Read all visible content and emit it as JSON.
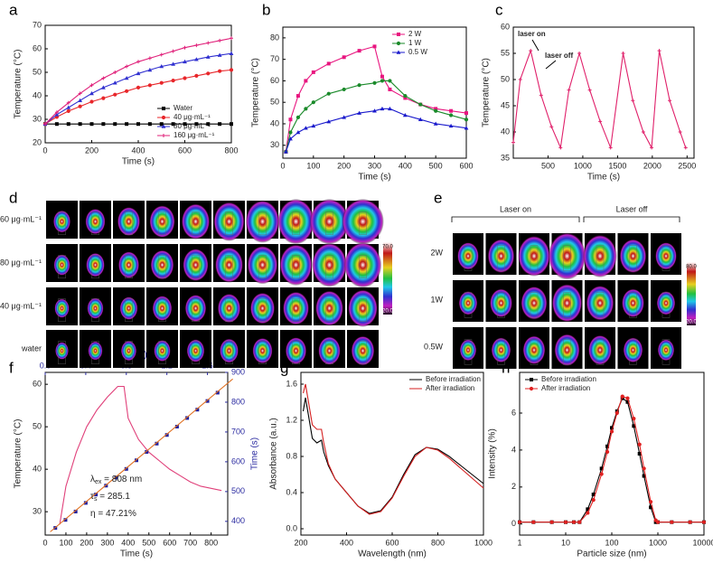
{
  "chart_data": [
    {
      "type": "line",
      "label": "a",
      "xlabel": "Time (s)",
      "ylabel": "Temperature (°C)",
      "xlim": [
        0,
        800
      ],
      "xticks": [
        0,
        200,
        400,
        600,
        800
      ],
      "ylim": [
        20,
        70
      ],
      "yticks": [
        20,
        30,
        40,
        50,
        60,
        70
      ],
      "legend": "lower right",
      "x": [
        0,
        50,
        100,
        150,
        200,
        250,
        300,
        350,
        400,
        450,
        500,
        550,
        600,
        650,
        700,
        750,
        800
      ],
      "series": [
        {
          "name": "Water",
          "color": "#000000",
          "marker": "square",
          "values": [
            28,
            28,
            28,
            28,
            28,
            28,
            28,
            28,
            28,
            28,
            28,
            28,
            28,
            28,
            28,
            28,
            28
          ]
        },
        {
          "name": "40 μg·mL⁻¹",
          "color": "#e8262a",
          "marker": "circle",
          "values": [
            28,
            31,
            33.5,
            35.5,
            37.5,
            39,
            40.5,
            42,
            43.5,
            44.5,
            45.5,
            46.5,
            47.5,
            48.5,
            49.5,
            50.5,
            51
          ]
        },
        {
          "name": "80 μg·mL⁻¹",
          "color": "#3030d0",
          "marker": "triangle",
          "values": [
            28,
            32,
            35,
            38,
            41,
            43.5,
            45.5,
            47.5,
            49.5,
            51,
            52.5,
            53.5,
            54.5,
            55.5,
            56.5,
            57.3,
            58
          ]
        },
        {
          "name": "160 μg·mL⁻¹",
          "color": "#e0207a",
          "marker": "plus",
          "values": [
            28,
            33,
            37,
            41,
            44.5,
            47.5,
            50,
            52.5,
            54.5,
            56,
            57.5,
            59,
            60.5,
            61.5,
            62.5,
            63.5,
            64.5
          ]
        }
      ]
    },
    {
      "type": "line",
      "label": "b",
      "xlabel": "Time (s)",
      "ylabel": "Temperature (°C)",
      "xlim": [
        0,
        600
      ],
      "xticks": [
        0,
        100,
        200,
        300,
        400,
        500,
        600
      ],
      "ylim": [
        24,
        85
      ],
      "yticks": [
        30,
        40,
        50,
        60,
        70,
        80
      ],
      "legend": "upper right",
      "x": [
        10,
        25,
        50,
        75,
        100,
        150,
        200,
        250,
        300,
        325,
        350,
        400,
        450,
        500,
        550,
        600
      ],
      "series": [
        {
          "name": "2 W",
          "color": "#e8157f",
          "marker": "square",
          "values": [
            27,
            42,
            53,
            60,
            64,
            68,
            71,
            74,
            76,
            62,
            56,
            52,
            49,
            47,
            46,
            45
          ]
        },
        {
          "name": "1 W",
          "color": "#1a8a2a",
          "marker": "circle",
          "values": [
            27,
            36,
            43,
            47,
            50,
            54,
            56,
            58,
            59,
            60,
            60,
            53,
            49,
            46,
            44,
            42
          ]
        },
        {
          "name": "0.5 W",
          "color": "#1a1acc",
          "marker": "triangle",
          "values": [
            27,
            33,
            36,
            38,
            39,
            41,
            43,
            45,
            46,
            47,
            47,
            44,
            42,
            40,
            39,
            38
          ]
        }
      ]
    },
    {
      "type": "line",
      "label": "c",
      "xlabel": "Time (s)",
      "ylabel": "Temperature (°C)",
      "xlim": [
        0,
        2600
      ],
      "xticks": [
        500,
        1000,
        1500,
        2000,
        2500
      ],
      "ylim": [
        35,
        60
      ],
      "yticks": [
        35,
        40,
        45,
        50,
        55,
        60
      ],
      "annotations": [
        "laser on",
        "laser off"
      ],
      "x": [
        0,
        100,
        250,
        400,
        550,
        680,
        800,
        950,
        1100,
        1250,
        1400,
        1580,
        1720,
        1870,
        1990,
        2100,
        2250,
        2400,
        2480
      ],
      "series": [
        {
          "color": "#e0206a",
          "marker": "plus",
          "values": [
            38,
            50,
            55.5,
            47,
            41,
            37,
            48,
            55,
            48,
            42,
            37,
            55,
            46,
            40,
            37,
            55.5,
            46,
            40,
            37
          ]
        }
      ]
    },
    {
      "type": "line",
      "label": "f",
      "xlabel": "Time (s)",
      "ylabel": "Temperature (°C)",
      "x2label": "-ln(θ)",
      "y2label": "Time (s)",
      "axis2_color": "#2a2aa0",
      "xlim": [
        0,
        880
      ],
      "xticks": [
        0,
        100,
        200,
        300,
        400,
        500,
        600,
        700,
        800
      ],
      "ylim": [
        24.5,
        62.8
      ],
      "yticks": [
        30,
        40,
        50,
        60
      ],
      "x2lim": [
        0,
        1.8
      ],
      "x2ticks": [
        {
          "value": 0,
          "label": "0.0"
        },
        0.4,
        0.8,
        1.2,
        1.6
      ],
      "y2lim": [
        354,
        900
      ],
      "y2ticks": [
        400,
        500,
        600,
        700,
        800,
        900
      ],
      "annotations": [
        {
          "main": "λ",
          "sub": "ex",
          "tail": " = 808 nm"
        },
        {
          "main": "τ",
          "sub": "s",
          "tail": " = 285.1"
        },
        {
          "main": "η = 47.21%"
        }
      ],
      "series": [
        {
          "color": "#e0407a",
          "marker": "none",
          "x": [
            70,
            100,
            150,
            200,
            250,
            300,
            350,
            380,
            400,
            450,
            500,
            550,
            600,
            650,
            700,
            750,
            800,
            850
          ],
          "values": [
            27,
            36,
            44,
            50,
            54,
            57,
            59.5,
            59.5,
            52,
            47,
            44,
            42,
            40,
            38.5,
            37,
            36,
            35.5,
            35
          ]
        },
        {
          "color": "#1f1f9f",
          "marker": "square",
          "line": false,
          "xaxis": "x2",
          "axis": "y2",
          "x": [
            0.1,
            0.2,
            0.3,
            0.4,
            0.5,
            0.6,
            0.7,
            0.8,
            0.9,
            1.0,
            1.1,
            1.2,
            1.3,
            1.4,
            1.5,
            1.6,
            1.7
          ],
          "values": [
            378,
            405,
            433,
            462,
            490,
            520,
            547,
            576,
            605,
            633,
            661,
            690,
            718,
            747,
            775,
            804,
            832
          ]
        },
        {
          "color": "#e07020",
          "marker": "none",
          "xaxis": "x2",
          "axis": "y2",
          "x": [
            0.05,
            1.85
          ],
          "values": [
            365,
            878
          ]
        }
      ]
    },
    {
      "type": "line",
      "label": "g",
      "xlabel": "Wavelength (nm)",
      "ylabel": "Absorbance (a.u.)",
      "xlim": [
        200,
        1000
      ],
      "xticks": [
        200,
        400,
        600,
        800,
        1000
      ],
      "ylim": [
        -0.07,
        1.73
      ],
      "yticks": [
        {
          "value": 0,
          "label": "0.0"
        },
        0.4,
        0.8,
        1.2,
        1.6
      ],
      "legend": "upper right",
      "x": [
        210,
        220,
        230,
        250,
        270,
        290,
        300,
        320,
        350,
        400,
        450,
        500,
        550,
        600,
        650,
        700,
        750,
        800,
        850,
        900,
        950,
        1000
      ],
      "series": [
        {
          "name": "Before irradiation",
          "color": "#000000",
          "marker": "none",
          "values": [
            1.3,
            1.45,
            1.3,
            1.0,
            0.95,
            0.98,
            0.85,
            0.7,
            0.55,
            0.4,
            0.25,
            0.17,
            0.2,
            0.35,
            0.6,
            0.82,
            0.9,
            0.88,
            0.8,
            0.7,
            0.6,
            0.5
          ]
        },
        {
          "name": "After irradiation",
          "color": "#d42020",
          "marker": "none",
          "values": [
            1.5,
            1.6,
            1.45,
            1.15,
            1.1,
            1.1,
            0.95,
            0.72,
            0.55,
            0.4,
            0.25,
            0.16,
            0.19,
            0.34,
            0.58,
            0.8,
            0.9,
            0.87,
            0.78,
            0.67,
            0.56,
            0.45
          ]
        }
      ]
    },
    {
      "type": "line",
      "label": "h",
      "xlabel": "Particle size (nm)",
      "ylabel": "Intensity (%)",
      "xlog": true,
      "xlim": [
        1,
        10000
      ],
      "xticks": [
        1,
        10,
        100,
        1000,
        10000
      ],
      "ylim": [
        -0.6,
        8.2
      ],
      "yticks": [
        0,
        2,
        4,
        6
      ],
      "legend": "upper left",
      "x": [
        1,
        2,
        5,
        10,
        15,
        20,
        30,
        40,
        60,
        80,
        100,
        130,
        170,
        220,
        300,
        400,
        500,
        700,
        900,
        1000,
        2000,
        5000,
        10000
      ],
      "series": [
        {
          "name": "Before irradiation",
          "color": "#000000",
          "marker": "square",
          "values": [
            0.1,
            0.1,
            0.1,
            0.1,
            0.1,
            0.1,
            0.8,
            1.6,
            3,
            4.2,
            5.2,
            6.1,
            6.8,
            6.6,
            5.3,
            3.8,
            2.6,
            0.9,
            0.1,
            0.1,
            0.1,
            0.1,
            0.1
          ]
        },
        {
          "name": "After irradiation",
          "color": "#e02020",
          "marker": "circle",
          "values": [
            0.1,
            0.1,
            0.1,
            0.1,
            0.1,
            0.1,
            0.6,
            1.3,
            2.7,
            3.9,
            5,
            6,
            6.9,
            6.8,
            5.7,
            4.3,
            3,
            1.2,
            0.2,
            0.1,
            0.1,
            0.1,
            0.1
          ]
        }
      ]
    }
  ],
  "thermal": [
    {
      "label": "d",
      "rows": [
        "160 μg·mL⁻¹",
        "80 μg·mL⁻¹",
        "40 μg·mL⁻¹",
        "water"
      ],
      "colorbar": [
        "70.0",
        "20.0"
      ]
    },
    {
      "label": "e",
      "groups": [
        "Laser on",
        "Laser off"
      ],
      "rows": [
        "2W",
        "1W",
        "0.5W"
      ],
      "colorbar": [
        "80.0",
        "20.0"
      ]
    }
  ]
}
